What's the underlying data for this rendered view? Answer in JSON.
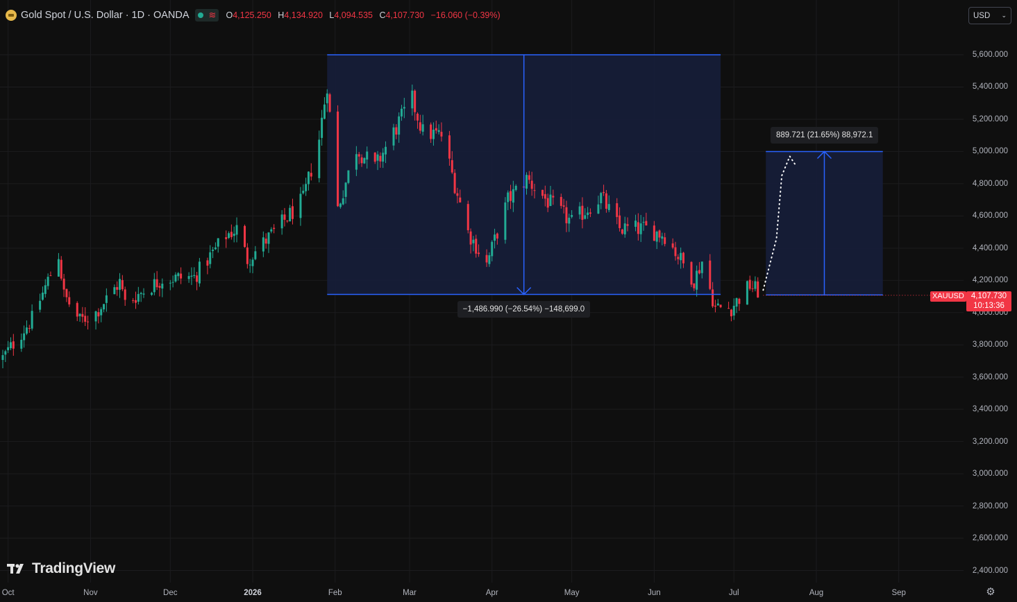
{
  "header": {
    "symbol_title": "Gold Spot / U.S. Dollar · 1D · OANDA",
    "ohlc": {
      "o_label": "O",
      "o_value": "4,125.250",
      "h_label": "H",
      "h_value": "4,134.920",
      "l_label": "L",
      "l_value": "4,094.535",
      "c_label": "C",
      "c_value": "4,107.730",
      "change": "−16.060 (−0.39%)"
    }
  },
  "currency_selector": {
    "value": "USD"
  },
  "brand": {
    "name": "TradingView"
  },
  "colors": {
    "background": "#0f0f0f",
    "up": "#22ab94",
    "down": "#f23645",
    "tool": "#2962ff",
    "tool_fill": "#161d38"
  },
  "price_axis": {
    "labels": [
      "5,600.000",
      "5,400.000",
      "5,200.000",
      "5,000.000",
      "4,800.000",
      "4,600.000",
      "4,400.000",
      "4,200.000",
      "4,000.000",
      "3,800.000",
      "3,600.000",
      "3,400.000",
      "3,200.000",
      "3,000.000",
      "2,800.000",
      "2,600.000",
      "2,400.000"
    ],
    "values": [
      5600,
      5400,
      5200,
      5000,
      4800,
      4600,
      4400,
      4200,
      4000,
      3800,
      3600,
      3400,
      3200,
      3000,
      2800,
      2600,
      2400
    ]
  },
  "time_axis": {
    "labels": [
      "Oct",
      "Nov",
      "Dec",
      "2026",
      "Feb",
      "Mar",
      "Apr",
      "May",
      "Jun",
      "Jul",
      "Aug",
      "Sep"
    ],
    "bold": [
      false,
      false,
      false,
      true,
      false,
      false,
      false,
      false,
      false,
      false,
      false,
      false
    ]
  },
  "chart_data": {
    "type": "candlestick",
    "interval": "1D",
    "start_date": "2025-09-29",
    "scale": "linear",
    "ylim": [
      2350,
      5700
    ],
    "grid": true,
    "close_key_points": [
      {
        "date": "2025-09-29",
        "price": 3720
      },
      {
        "date": "2025-10-10",
        "price": 3960
      },
      {
        "date": "2025-10-20",
        "price": 4360
      },
      {
        "date": "2025-10-22",
        "price": 4110
      },
      {
        "date": "2025-10-28",
        "price": 3950
      },
      {
        "date": "2025-11-03",
        "price": 4000
      },
      {
        "date": "2025-11-12",
        "price": 4190
      },
      {
        "date": "2025-11-14",
        "price": 4060
      },
      {
        "date": "2025-11-28",
        "price": 4210
      },
      {
        "date": "2025-12-10",
        "price": 4220
      },
      {
        "date": "2025-12-22",
        "price": 4480
      },
      {
        "date": "2025-12-26",
        "price": 4520
      },
      {
        "date": "2025-12-30",
        "price": 4330
      },
      {
        "date": "2026-01-09",
        "price": 4500
      },
      {
        "date": "2026-01-20",
        "price": 4700
      },
      {
        "date": "2026-01-26",
        "price": 5080
      },
      {
        "date": "2026-01-29",
        "price": 5420
      },
      {
        "date": "2026-02-02",
        "price": 4650
      },
      {
        "date": "2026-02-09",
        "price": 5020
      },
      {
        "date": "2026-02-16",
        "price": 4900
      },
      {
        "date": "2026-02-25",
        "price": 5180
      },
      {
        "date": "2026-03-02",
        "price": 5320
      },
      {
        "date": "2026-03-06",
        "price": 5120
      },
      {
        "date": "2026-03-13",
        "price": 5100
      },
      {
        "date": "2026-03-23",
        "price": 4500
      },
      {
        "date": "2026-03-30",
        "price": 4300
      },
      {
        "date": "2026-04-07",
        "price": 4700
      },
      {
        "date": "2026-04-14",
        "price": 4830
      },
      {
        "date": "2026-04-22",
        "price": 4690
      },
      {
        "date": "2026-05-01",
        "price": 4560
      },
      {
        "date": "2026-05-12",
        "price": 4720
      },
      {
        "date": "2026-05-19",
        "price": 4520
      },
      {
        "date": "2026-05-29",
        "price": 4520
      },
      {
        "date": "2026-06-05",
        "price": 4480
      },
      {
        "date": "2026-06-16",
        "price": 4200
      },
      {
        "date": "2026-06-19",
        "price": 4320
      },
      {
        "date": "2026-06-24",
        "price": 4030
      },
      {
        "date": "2026-06-30",
        "price": 4030
      },
      {
        "date": "2026-07-07",
        "price": 4170
      },
      {
        "date": "2026-07-12",
        "price": 4108
      }
    ],
    "last_price": {
      "symbol": "XAUUSD",
      "price": "4,107.730",
      "countdown": "10:13:36",
      "value": 4107.73
    },
    "tools": [
      {
        "kind": "price_range",
        "direction": "down",
        "start": {
          "date": "2026-01-29",
          "price": 5600
        },
        "end": {
          "date": "2026-06-26",
          "price": 4113
        },
        "label": "−1,486.990 (−26.54%) −148,699.0"
      },
      {
        "kind": "price_range",
        "direction": "up",
        "start": {
          "date": "2026-07-13",
          "price": 4110
        },
        "end": {
          "date": "2026-08-26",
          "price": 4999.7
        },
        "label": "889.721 (21.65%) 88,972.1"
      }
    ],
    "projection_path": [
      {
        "date": "2026-07-12",
        "price": 4140
      },
      {
        "date": "2026-07-17",
        "price": 4460
      },
      {
        "date": "2026-07-19",
        "price": 4850
      },
      {
        "date": "2026-07-22",
        "price": 4970
      },
      {
        "date": "2026-07-24",
        "price": 4920
      }
    ]
  }
}
